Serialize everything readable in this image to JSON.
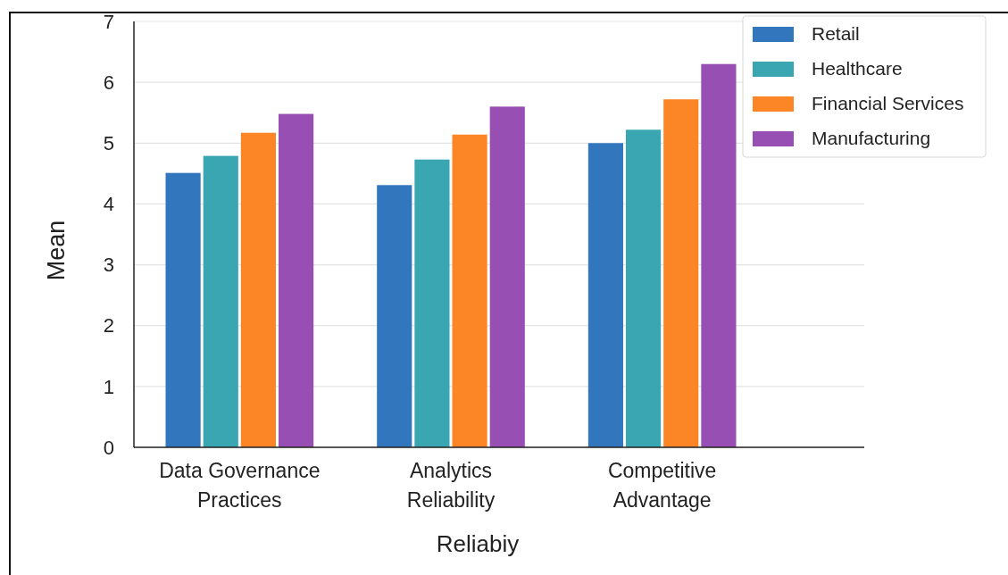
{
  "chart_data": {
    "type": "bar",
    "xlabel": "Reliabiy",
    "ylabel": "Mean",
    "categories": [
      "Data Governance Practices",
      "Analytics Reliability",
      "Competitive Advantage"
    ],
    "series": [
      {
        "name": "Retail",
        "color": "#3277bd",
        "values": [
          4.51,
          4.31,
          5.0
        ]
      },
      {
        "name": "Healthcare",
        "color": "#3aa6b2",
        "values": [
          4.79,
          4.73,
          5.22
        ]
      },
      {
        "name": "Financial Services",
        "color": "#fc8626",
        "values": [
          5.17,
          5.14,
          5.72
        ]
      },
      {
        "name": "Manufacturing",
        "color": "#984fb3",
        "values": [
          5.48,
          5.6,
          6.3
        ]
      }
    ],
    "ylim": [
      0,
      7
    ],
    "yticks": [
      0,
      1,
      2,
      3,
      4,
      5,
      6,
      7
    ],
    "grid": "y",
    "legend": "top right"
  }
}
